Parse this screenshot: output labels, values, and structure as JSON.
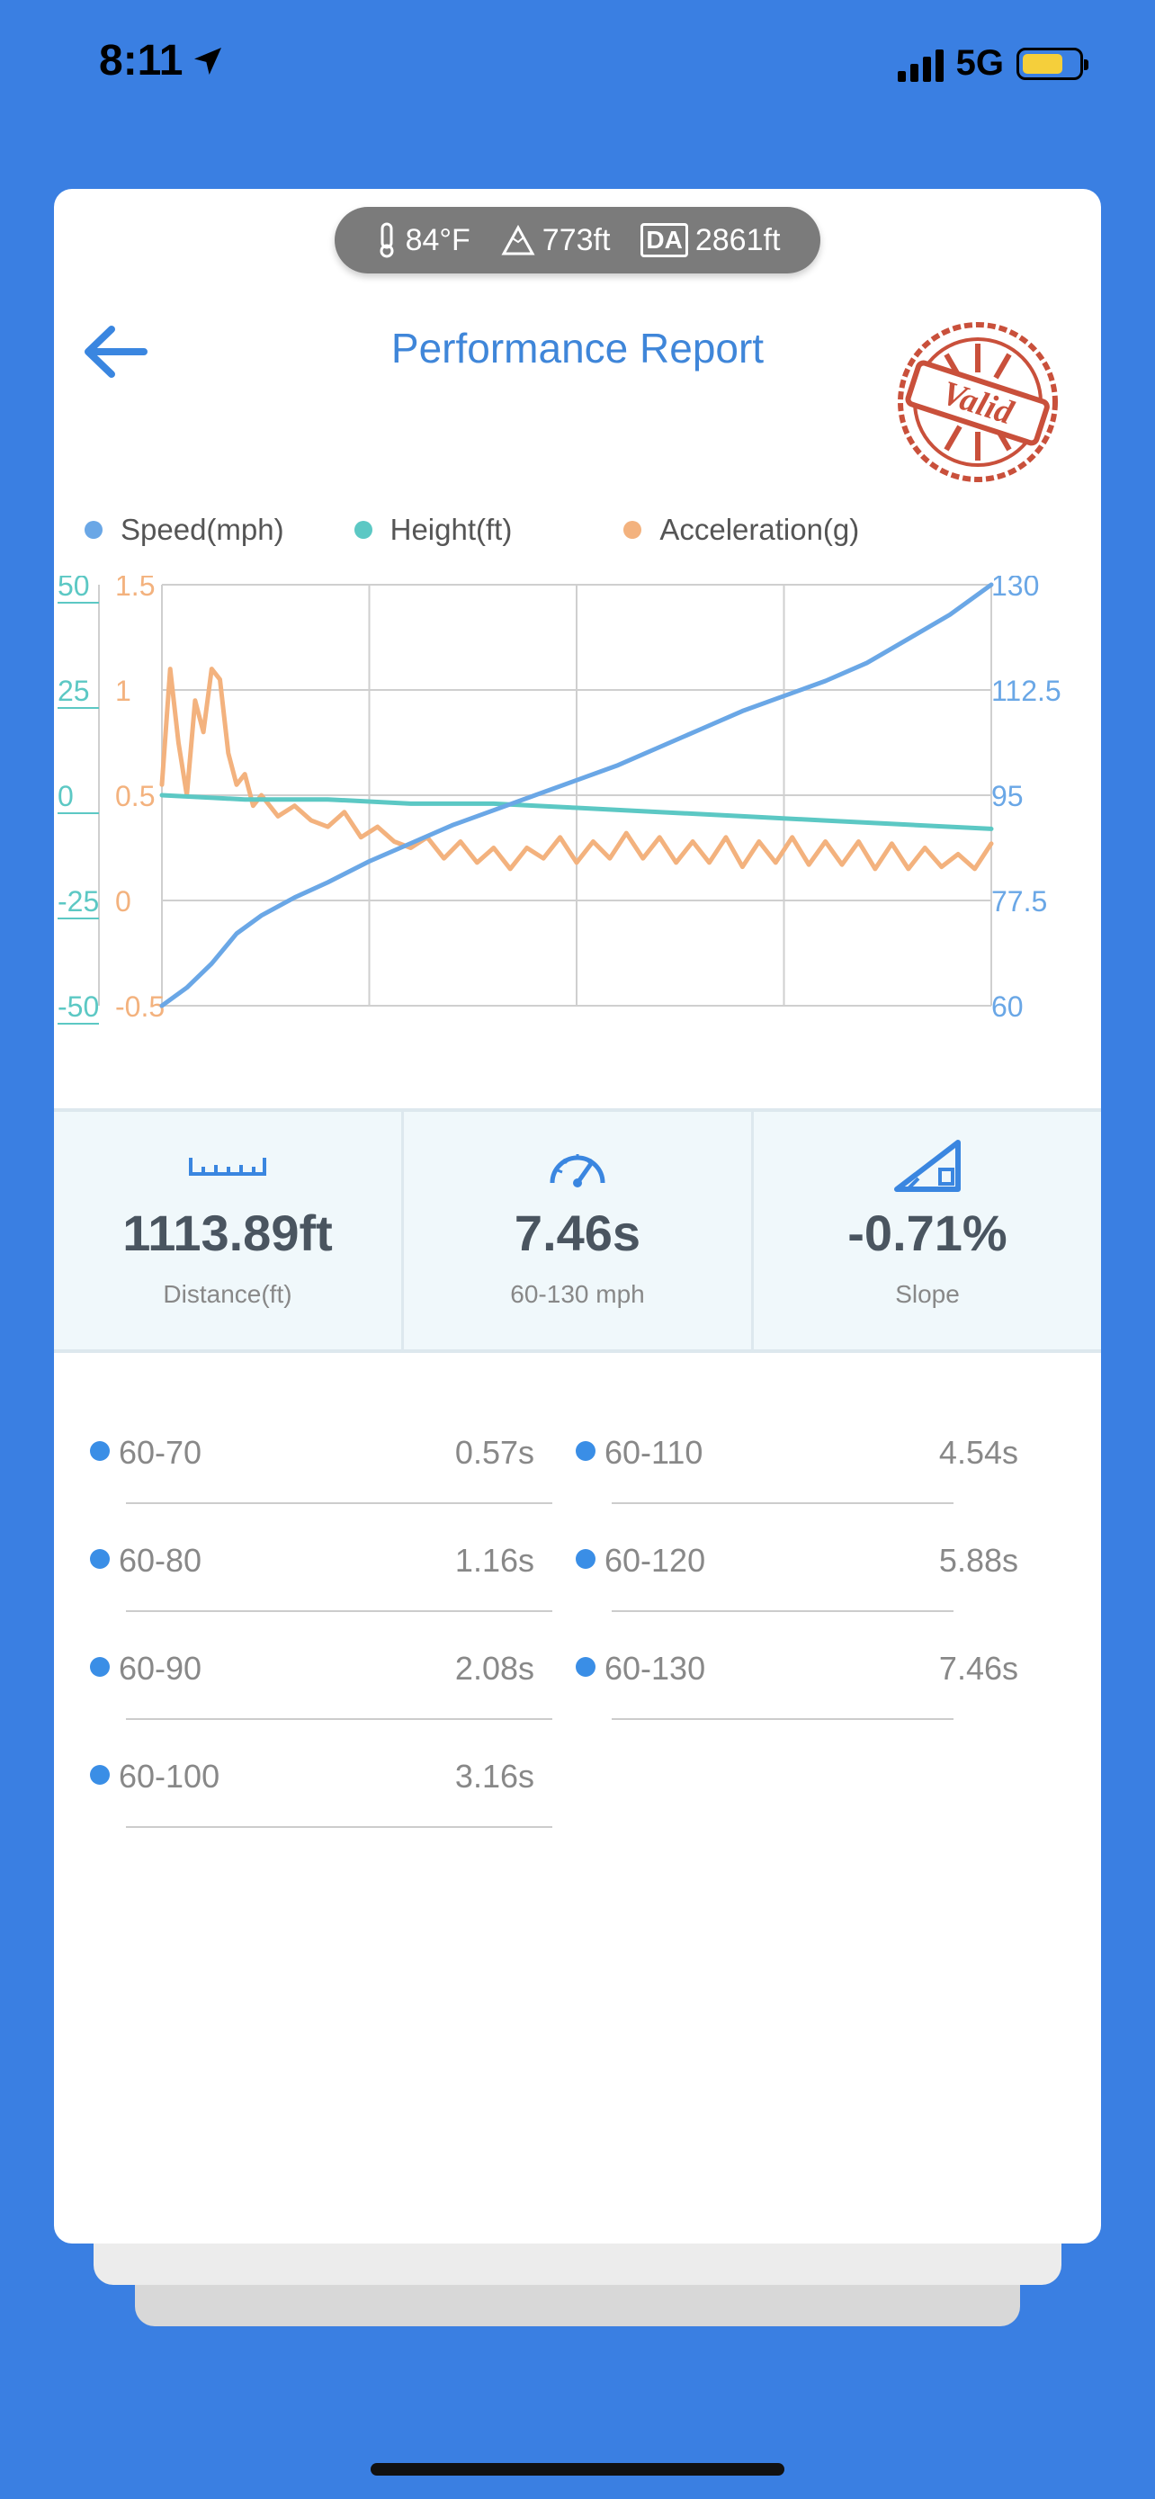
{
  "status": {
    "time": "8:11",
    "network": "5G"
  },
  "conditions": {
    "temperature": "84°F",
    "elevation": "773ft",
    "da_badge": "DA",
    "density_altitude": "2861ft"
  },
  "header": {
    "title": "Performance Report",
    "stamp_text": "Valid"
  },
  "legend": [
    {
      "label": "Speed(mph)",
      "color": "#6aa7e6"
    },
    {
      "label": "Height(ft)",
      "color": "#5cc8c4"
    },
    {
      "label": "Acceleration(g)",
      "color": "#f3b27e"
    }
  ],
  "chart_data": {
    "type": "line",
    "x": [
      0,
      0.2,
      0.4,
      0.6,
      0.8,
      1.0
    ],
    "series": [
      {
        "name": "Speed(mph)",
        "axis": "right",
        "color": "#6aa7e6",
        "points": [
          [
            0,
            60
          ],
          [
            0.03,
            63
          ],
          [
            0.06,
            67
          ],
          [
            0.09,
            72
          ],
          [
            0.12,
            75
          ],
          [
            0.16,
            78
          ],
          [
            0.2,
            80.5
          ],
          [
            0.25,
            84
          ],
          [
            0.3,
            87
          ],
          [
            0.35,
            90
          ],
          [
            0.4,
            92.5
          ],
          [
            0.45,
            95
          ],
          [
            0.5,
            97.5
          ],
          [
            0.55,
            100
          ],
          [
            0.6,
            103
          ],
          [
            0.65,
            106
          ],
          [
            0.7,
            109
          ],
          [
            0.75,
            111.5
          ],
          [
            0.8,
            114
          ],
          [
            0.85,
            117
          ],
          [
            0.9,
            121
          ],
          [
            0.95,
            125
          ],
          [
            1.0,
            130
          ]
        ]
      },
      {
        "name": "Height(ft)",
        "axis": "left-height",
        "color": "#5cc8c4",
        "points": [
          [
            0,
            0
          ],
          [
            0.1,
            -1
          ],
          [
            0.2,
            -1
          ],
          [
            0.3,
            -2
          ],
          [
            0.4,
            -2
          ],
          [
            0.5,
            -3
          ],
          [
            0.6,
            -4
          ],
          [
            0.7,
            -5
          ],
          [
            0.8,
            -6
          ],
          [
            0.9,
            -7
          ],
          [
            1.0,
            -8
          ]
        ]
      },
      {
        "name": "Acceleration(g)",
        "axis": "left-accel",
        "color": "#f3b27e",
        "points": [
          [
            0,
            0.55
          ],
          [
            0.01,
            1.1
          ],
          [
            0.02,
            0.75
          ],
          [
            0.03,
            0.5
          ],
          [
            0.04,
            0.95
          ],
          [
            0.05,
            0.8
          ],
          [
            0.06,
            1.1
          ],
          [
            0.07,
            1.05
          ],
          [
            0.08,
            0.7
          ],
          [
            0.09,
            0.55
          ],
          [
            0.1,
            0.6
          ],
          [
            0.11,
            0.45
          ],
          [
            0.12,
            0.5
          ],
          [
            0.14,
            0.4
          ],
          [
            0.16,
            0.45
          ],
          [
            0.18,
            0.38
          ],
          [
            0.2,
            0.35
          ],
          [
            0.22,
            0.42
          ],
          [
            0.24,
            0.3
          ],
          [
            0.26,
            0.35
          ],
          [
            0.28,
            0.28
          ],
          [
            0.3,
            0.25
          ],
          [
            0.32,
            0.3
          ],
          [
            0.34,
            0.2
          ],
          [
            0.36,
            0.28
          ],
          [
            0.38,
            0.18
          ],
          [
            0.4,
            0.25
          ],
          [
            0.42,
            0.15
          ],
          [
            0.44,
            0.25
          ],
          [
            0.46,
            0.2
          ],
          [
            0.48,
            0.3
          ],
          [
            0.5,
            0.18
          ],
          [
            0.52,
            0.28
          ],
          [
            0.54,
            0.2
          ],
          [
            0.56,
            0.32
          ],
          [
            0.58,
            0.2
          ],
          [
            0.6,
            0.3
          ],
          [
            0.62,
            0.18
          ],
          [
            0.64,
            0.28
          ],
          [
            0.66,
            0.18
          ],
          [
            0.68,
            0.3
          ],
          [
            0.7,
            0.16
          ],
          [
            0.72,
            0.28
          ],
          [
            0.74,
            0.18
          ],
          [
            0.76,
            0.3
          ],
          [
            0.78,
            0.17
          ],
          [
            0.8,
            0.28
          ],
          [
            0.82,
            0.17
          ],
          [
            0.84,
            0.28
          ],
          [
            0.86,
            0.15
          ],
          [
            0.88,
            0.27
          ],
          [
            0.9,
            0.15
          ],
          [
            0.92,
            0.25
          ],
          [
            0.94,
            0.16
          ],
          [
            0.96,
            0.22
          ],
          [
            0.98,
            0.15
          ],
          [
            1.0,
            0.27
          ]
        ]
      }
    ],
    "axes": {
      "left_height": {
        "ticks": [
          "50",
          "25",
          "0",
          "-25",
          "-50"
        ],
        "range": [
          -50,
          50
        ],
        "color": "#5cc8c4"
      },
      "left_accel": {
        "ticks": [
          "1.5",
          "1",
          "0.5",
          "0",
          "-0.5"
        ],
        "range": [
          -0.5,
          1.5
        ],
        "color": "#f3b27e"
      },
      "right_speed": {
        "ticks": [
          "130",
          "112.5",
          "95",
          "77.5",
          "60"
        ],
        "range": [
          60,
          130
        ],
        "color": "#6aa7e6"
      }
    },
    "grid": true
  },
  "stats": [
    {
      "icon": "ruler-icon",
      "value": "1113.89ft",
      "label": "Distance(ft)"
    },
    {
      "icon": "speedometer-icon",
      "value": "7.46s",
      "label": "60-130 mph"
    },
    {
      "icon": "slope-icon",
      "value": "-0.71%",
      "label": "Slope"
    }
  ],
  "splits": [
    {
      "label": "60-70",
      "time": "0.57s"
    },
    {
      "label": "60-80",
      "time": "1.16s"
    },
    {
      "label": "60-90",
      "time": "2.08s"
    },
    {
      "label": "60-100",
      "time": "3.16s"
    },
    {
      "label": "60-110",
      "time": "4.54s"
    },
    {
      "label": "60-120",
      "time": "5.88s"
    },
    {
      "label": "60-130",
      "time": "7.46s"
    }
  ]
}
